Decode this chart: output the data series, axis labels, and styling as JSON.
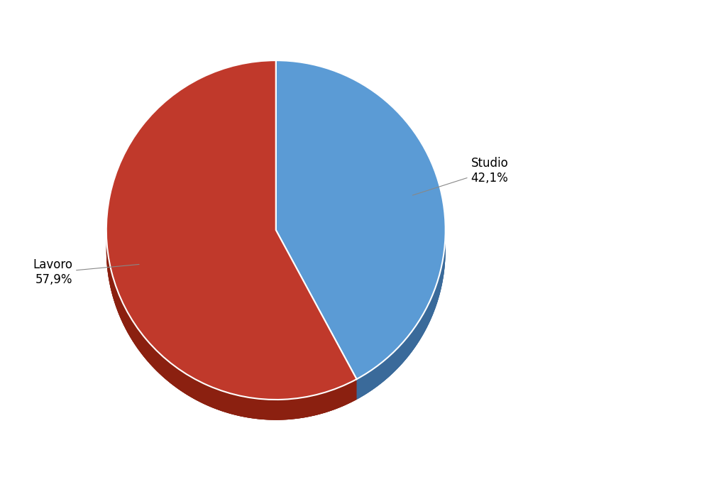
{
  "labels": [
    "Studio",
    "Lavoro"
  ],
  "values": [
    42.1,
    57.9
  ],
  "colors": [
    "#5B9BD5",
    "#C0392B"
  ],
  "dark_colors": [
    "#3A6A9A",
    "#8B2010"
  ],
  "background_color": "#FFFFFF",
  "startangle": 90,
  "label_studio": "Studio\n42,1%",
  "label_lavoro": "Lavoro\n57,9%",
  "figsize": [
    10.23,
    6.72
  ]
}
